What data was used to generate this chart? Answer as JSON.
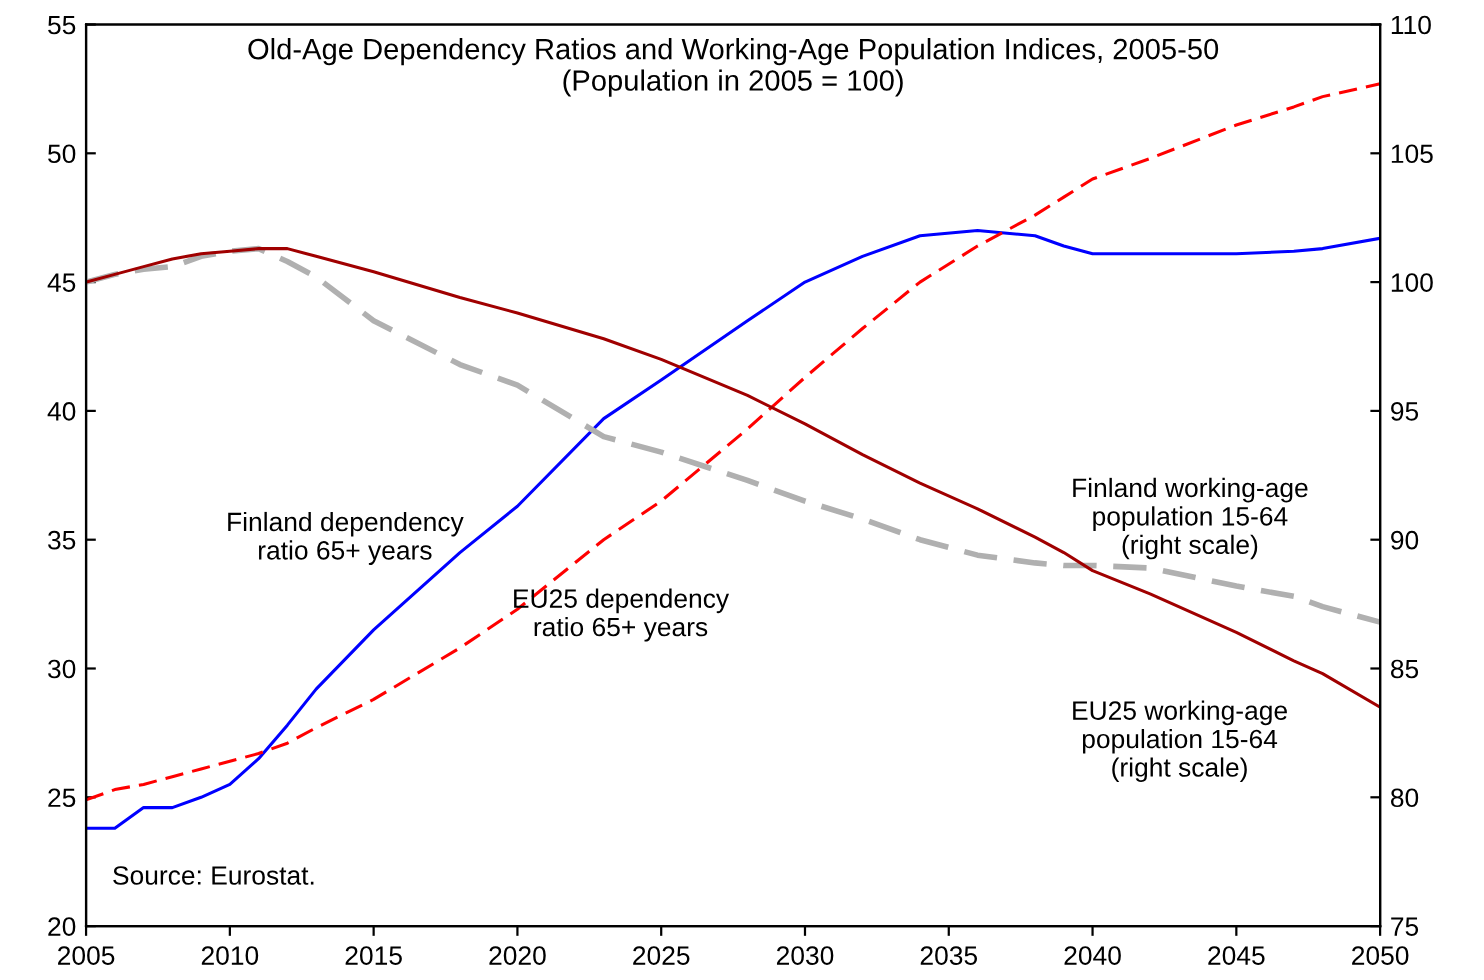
{
  "chart_data": {
    "type": "line",
    "title": "Old-Age Dependency Ratios and Working-Age Population Indices, 2005-50\n(Population in 2005 = 100)",
    "x": [
      2005,
      2006,
      2007,
      2008,
      2009,
      2010,
      2011,
      2012,
      2013,
      2015,
      2018,
      2020,
      2023,
      2025,
      2028,
      2030,
      2032,
      2034,
      2036,
      2038,
      2039,
      2040,
      2042,
      2045,
      2047,
      2048,
      2050
    ],
    "series": [
      {
        "name": "Finland dependency\nratio 65+ years",
        "color": "#0000ff",
        "line_style": "solid",
        "values": [
          23.8,
          23.8,
          24.6,
          24.6,
          25.0,
          25.5,
          26.5,
          27.8,
          29.2,
          31.5,
          34.5,
          36.3,
          39.7,
          41.2,
          43.5,
          45.0,
          46.0,
          46.8,
          47.0,
          46.8,
          46.4,
          46.1,
          46.1,
          46.1,
          46.2,
          46.3,
          46.7
        ]
      },
      {
        "name": "EU25 dependency\nratio 65+ years",
        "color": "#ff0000",
        "line_style": "dashed",
        "values": [
          24.9,
          25.3,
          25.5,
          25.8,
          26.1,
          26.4,
          26.7,
          27.1,
          27.7,
          28.8,
          30.8,
          32.3,
          35.0,
          36.5,
          39.3,
          41.3,
          43.2,
          45.0,
          46.4,
          47.6,
          48.3,
          49.0,
          49.8,
          51.1,
          51.8,
          52.2,
          52.7
        ]
      },
      {
        "name": "Finland working-age\npopulation 15-64\n(right scale)",
        "color": "#b0b0b0",
        "line_style": "dashed",
        "axis": "y2",
        "values": [
          100.0,
          100.3,
          100.5,
          100.6,
          101.0,
          101.2,
          101.3,
          100.8,
          100.2,
          98.5,
          96.8,
          96.0,
          94.0,
          93.4,
          92.3,
          91.5,
          90.8,
          90.0,
          89.4,
          89.1,
          89.0,
          89.0,
          88.9,
          88.2,
          87.8,
          87.4,
          86.8
        ]
      },
      {
        "name": "EU25 working-age\npopulation 15-64\n(right scale)",
        "color": "#a00000",
        "line_style": "solid",
        "axis": "y2",
        "values": [
          100.0,
          100.3,
          100.6,
          100.9,
          101.1,
          101.2,
          101.3,
          101.3,
          101.0,
          100.4,
          99.4,
          98.8,
          97.8,
          97.0,
          95.6,
          94.5,
          93.3,
          92.2,
          91.2,
          90.1,
          89.5,
          88.8,
          87.9,
          86.4,
          85.3,
          84.8,
          83.5
        ]
      }
    ],
    "xlim": [
      2005,
      2050
    ],
    "xticks": [
      2005,
      2010,
      2015,
      2020,
      2025,
      2030,
      2035,
      2040,
      2045,
      2050
    ],
    "ylim": [
      20,
      55
    ],
    "yticks": [
      20,
      25,
      30,
      35,
      40,
      45,
      50,
      55
    ],
    "y2lim": [
      75,
      110
    ],
    "y2ticks": [
      75,
      80,
      85,
      90,
      95,
      100,
      105,
      110
    ],
    "grid": false,
    "legend": false,
    "marker": "none",
    "annotations": [
      "Source: Eurostat."
    ]
  }
}
